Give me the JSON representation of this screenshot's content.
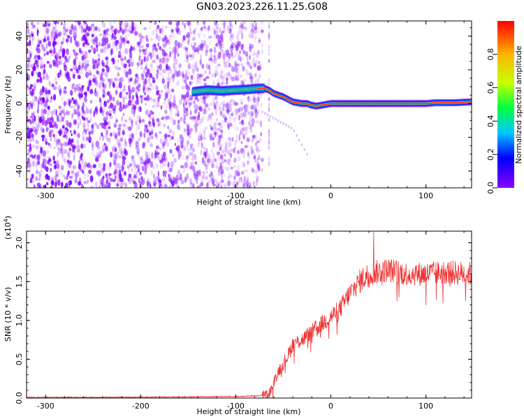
{
  "figure": {
    "title": "GN03.2023.226.11.25.G08"
  },
  "chart_data": [
    {
      "type": "heatmap",
      "title": "GN03.2023.226.11.25.G08",
      "xlabel": "Height of straight line (km)",
      "ylabel": "Frequency (Hz)",
      "xlim": [
        -320,
        148
      ],
      "ylim": [
        -50,
        49
      ],
      "xticks": [
        -300,
        -200,
        -100,
        0,
        100
      ],
      "yticks": [
        -40,
        -20,
        0,
        20,
        40
      ],
      "grid": false,
      "colorbar": {
        "label": "Normalized spectral amplitude",
        "range": [
          0,
          1
        ],
        "ticks": [
          "0.0",
          "0.2",
          "0.4",
          "0.6",
          "0.8"
        ],
        "colors": [
          "#8a00ff",
          "#0000ff",
          "#00c8ff",
          "#00ff40",
          "#c8ff00",
          "#ffb400",
          "#ff0000"
        ]
      },
      "noise_region_x": [
        -320,
        -72
      ],
      "noise_color": "#8000ff",
      "ridge": {
        "x": [
          -145,
          -130,
          -115,
          -100,
          -85,
          -75,
          -70,
          -65,
          -60,
          -55,
          -50,
          -45,
          -40,
          -35,
          -30,
          -25,
          -20,
          -15,
          -10,
          -5,
          0,
          10,
          20,
          40,
          60,
          80,
          100,
          110,
          120,
          130,
          148
        ],
        "y": [
          7,
          8,
          7.5,
          8,
          8.5,
          9,
          9,
          8,
          6,
          5,
          4,
          2.5,
          1,
          0.5,
          0,
          0,
          -1,
          -1.5,
          -1,
          -0.5,
          0,
          0,
          0,
          0,
          0,
          0,
          0,
          0.5,
          0.5,
          0.5,
          1
        ]
      },
      "faint_tail": {
        "x": [
          -72,
          -40,
          -25
        ],
        "y": [
          -5,
          -15,
          -30
        ]
      }
    },
    {
      "type": "line",
      "xlabel": "Height of straight line (km)",
      "ylabel": "SNR (10 * v/v)",
      "y_multiplier": "(x10",
      "y_multiplier_exp": "4",
      "y_multiplier_close": ")",
      "xlim": [
        -320,
        148
      ],
      "ylim": [
        0,
        2.15
      ],
      "xticks": [
        -300,
        -200,
        -100,
        0,
        100
      ],
      "yticks": [
        "0.0",
        "0.5",
        "1.0",
        "1.5",
        "2.0"
      ],
      "ytick_values": [
        0,
        0.5,
        1,
        1.5,
        2
      ],
      "grid": false,
      "color": "#f03030",
      "envelope": {
        "x": [
          -320,
          -250,
          -150,
          -120,
          -100,
          -75,
          -68,
          -65,
          -60,
          -55,
          -50,
          -45,
          -40,
          -30,
          -20,
          -10,
          0,
          10,
          20,
          30,
          40,
          60,
          80,
          100,
          120,
          148
        ],
        "y": [
          0.01,
          0.01,
          0.015,
          0.02,
          0.02,
          0.03,
          0.05,
          0.05,
          0.2,
          0.35,
          0.45,
          0.55,
          0.7,
          0.75,
          0.85,
          0.95,
          1.05,
          1.15,
          1.35,
          1.5,
          1.6,
          1.65,
          1.6,
          1.6,
          1.62,
          1.6
        ]
      },
      "peak": {
        "x": 45,
        "y": 2.13
      }
    }
  ]
}
